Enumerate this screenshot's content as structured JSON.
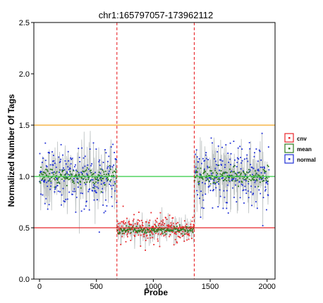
{
  "chart_data": {
    "type": "scatter",
    "title": "chr1:165797057-173962112",
    "xlabel": "Probe",
    "ylabel": "Normalized Number Of Tags",
    "xlim": [
      -50,
      2070
    ],
    "ylim": [
      0,
      2.5
    ],
    "x_ticks": [
      0,
      500,
      1000,
      1500,
      2000
    ],
    "y_ticks": [
      0.0,
      0.5,
      1.0,
      1.5,
      2.0,
      2.5
    ],
    "x_tick_labels": [
      "0",
      "500",
      "1000",
      "1500",
      "2000"
    ],
    "y_tick_labels": [
      "0.0",
      "0.5",
      "1.0",
      "1.5",
      "2.0",
      "2.5"
    ],
    "grid": false,
    "legend_position": "right",
    "n_probes": 2018,
    "cnv_region": {
      "start": 680,
      "end": 1360
    },
    "hlines": [
      {
        "y": 1.5,
        "color": "#f5a623"
      },
      {
        "y": 1.0,
        "color": "#2ecc40"
      },
      {
        "y": 0.5,
        "color": "#e8262a"
      }
    ],
    "vlines": [
      {
        "x": 680,
        "color": "#e8262a"
      },
      {
        "x": 1360,
        "color": "#e8262a"
      }
    ],
    "segments": [
      {
        "x_start": 0,
        "x_end": 680,
        "level": 1.0,
        "sd": 0.16,
        "group": "normal"
      },
      {
        "x_start": 680,
        "x_end": 1360,
        "level": 0.48,
        "sd": 0.07,
        "group": "cnv"
      },
      {
        "x_start": 1360,
        "x_end": 2018,
        "level": 1.0,
        "sd": 0.16,
        "group": "normal"
      }
    ],
    "series": [
      {
        "name": "cnv",
        "color": "#e8262a"
      },
      {
        "name": "mean",
        "color": "#2c7a1f"
      },
      {
        "name": "normal",
        "color": "#1f2fd6"
      }
    ],
    "band_color": "#b9bfbf",
    "colors": {
      "axis": "#000000",
      "background": "#ffffff"
    }
  }
}
